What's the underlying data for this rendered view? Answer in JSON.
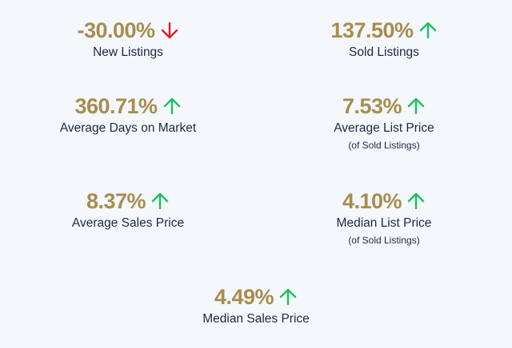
{
  "metrics": [
    {
      "value": "-30.00%",
      "direction": "down",
      "label": "New Listings"
    },
    {
      "value": "137.50%",
      "direction": "up",
      "label": "Sold Listings"
    },
    {
      "value": "360.71%",
      "direction": "up",
      "label": "Average Days on Market"
    },
    {
      "value": "7.53%",
      "direction": "up",
      "label": "Average List Price",
      "sublabel": "(of Sold Listings)"
    },
    {
      "value": "8.37%",
      "direction": "up",
      "label": "Average Sales Price"
    },
    {
      "value": "4.10%",
      "direction": "up",
      "label": "Median List Price",
      "sublabel": "(of Sold Listings)"
    },
    {
      "value": "4.49%",
      "direction": "up",
      "label": "Median Sales Price"
    }
  ]
}
